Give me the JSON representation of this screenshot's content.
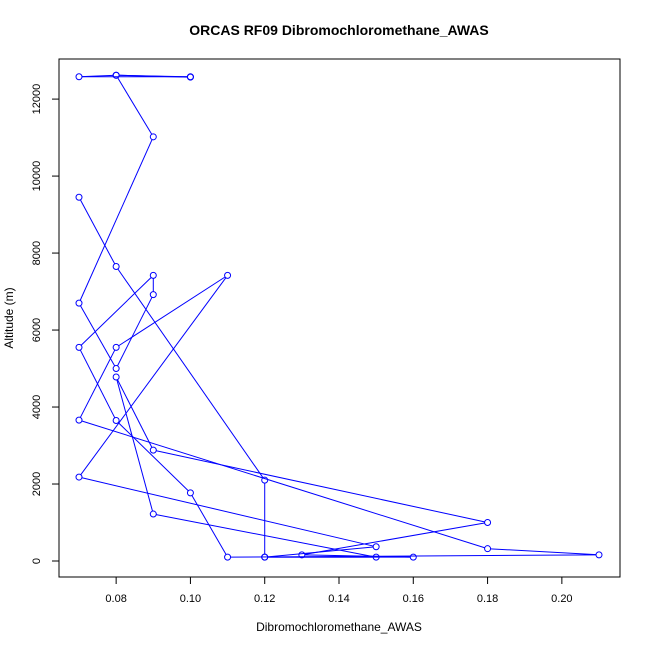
{
  "chart_data": {
    "type": "line",
    "title": "ORCAS RF09 Dibromochloromethane_AWAS",
    "xlabel": "Dibromochloromethane_AWAS",
    "ylabel": "Altitude (m)",
    "xlim": [
      0.07,
      0.21
    ],
    "ylim": [
      0,
      12600
    ],
    "xticks": [
      0.08,
      0.1,
      0.12,
      0.14,
      0.16,
      0.18,
      0.2
    ],
    "xtick_labels": [
      "0.08",
      "0.10",
      "0.12",
      "0.14",
      "0.16",
      "0.18",
      "0.20"
    ],
    "yticks": [
      0,
      2000,
      4000,
      6000,
      8000,
      10000,
      12000
    ],
    "ytick_labels": [
      "0",
      "2000",
      "4000",
      "6000",
      "8000",
      "10000",
      "12000"
    ],
    "series": [
      {
        "color": "#0000ff",
        "marker": "open-circle",
        "points": [
          {
            "x": 0.1,
            "y": 12570
          },
          {
            "x": 0.08,
            "y": 12620
          },
          {
            "x": 0.07,
            "y": 12580
          },
          {
            "x": 0.1,
            "y": 12580
          },
          {
            "x": 0.08,
            "y": 12620
          },
          {
            "x": 0.09,
            "y": 11020
          },
          {
            "x": 0.07,
            "y": 6700
          },
          {
            "x": 0.08,
            "y": 5000
          },
          {
            "x": 0.09,
            "y": 6920
          },
          {
            "x": 0.09,
            "y": 7420
          },
          {
            "x": 0.07,
            "y": 5550
          },
          {
            "x": 0.08,
            "y": 3650
          },
          {
            "x": 0.1,
            "y": 1770
          },
          {
            "x": 0.11,
            "y": 100
          },
          {
            "x": 0.21,
            "y": 160
          },
          {
            "x": 0.18,
            "y": 320
          },
          {
            "x": 0.07,
            "y": 3660
          },
          {
            "x": 0.08,
            "y": 5550
          },
          {
            "x": 0.11,
            "y": 7420
          },
          {
            "x": 0.07,
            "y": 2180
          },
          {
            "x": 0.15,
            "y": 370
          },
          {
            "x": 0.12,
            "y": 100
          },
          {
            "x": 0.16,
            "y": 100
          },
          {
            "x": 0.13,
            "y": 160
          },
          {
            "x": 0.18,
            "y": 1000
          },
          {
            "x": 0.09,
            "y": 2880
          },
          {
            "x": 0.08,
            "y": 4780
          },
          {
            "x": 0.09,
            "y": 1220
          },
          {
            "x": 0.15,
            "y": 100
          },
          {
            "x": 0.12,
            "y": 100
          },
          {
            "x": 0.12,
            "y": 2100
          },
          {
            "x": 0.08,
            "y": 7650
          },
          {
            "x": 0.07,
            "y": 9450
          }
        ]
      }
    ]
  }
}
